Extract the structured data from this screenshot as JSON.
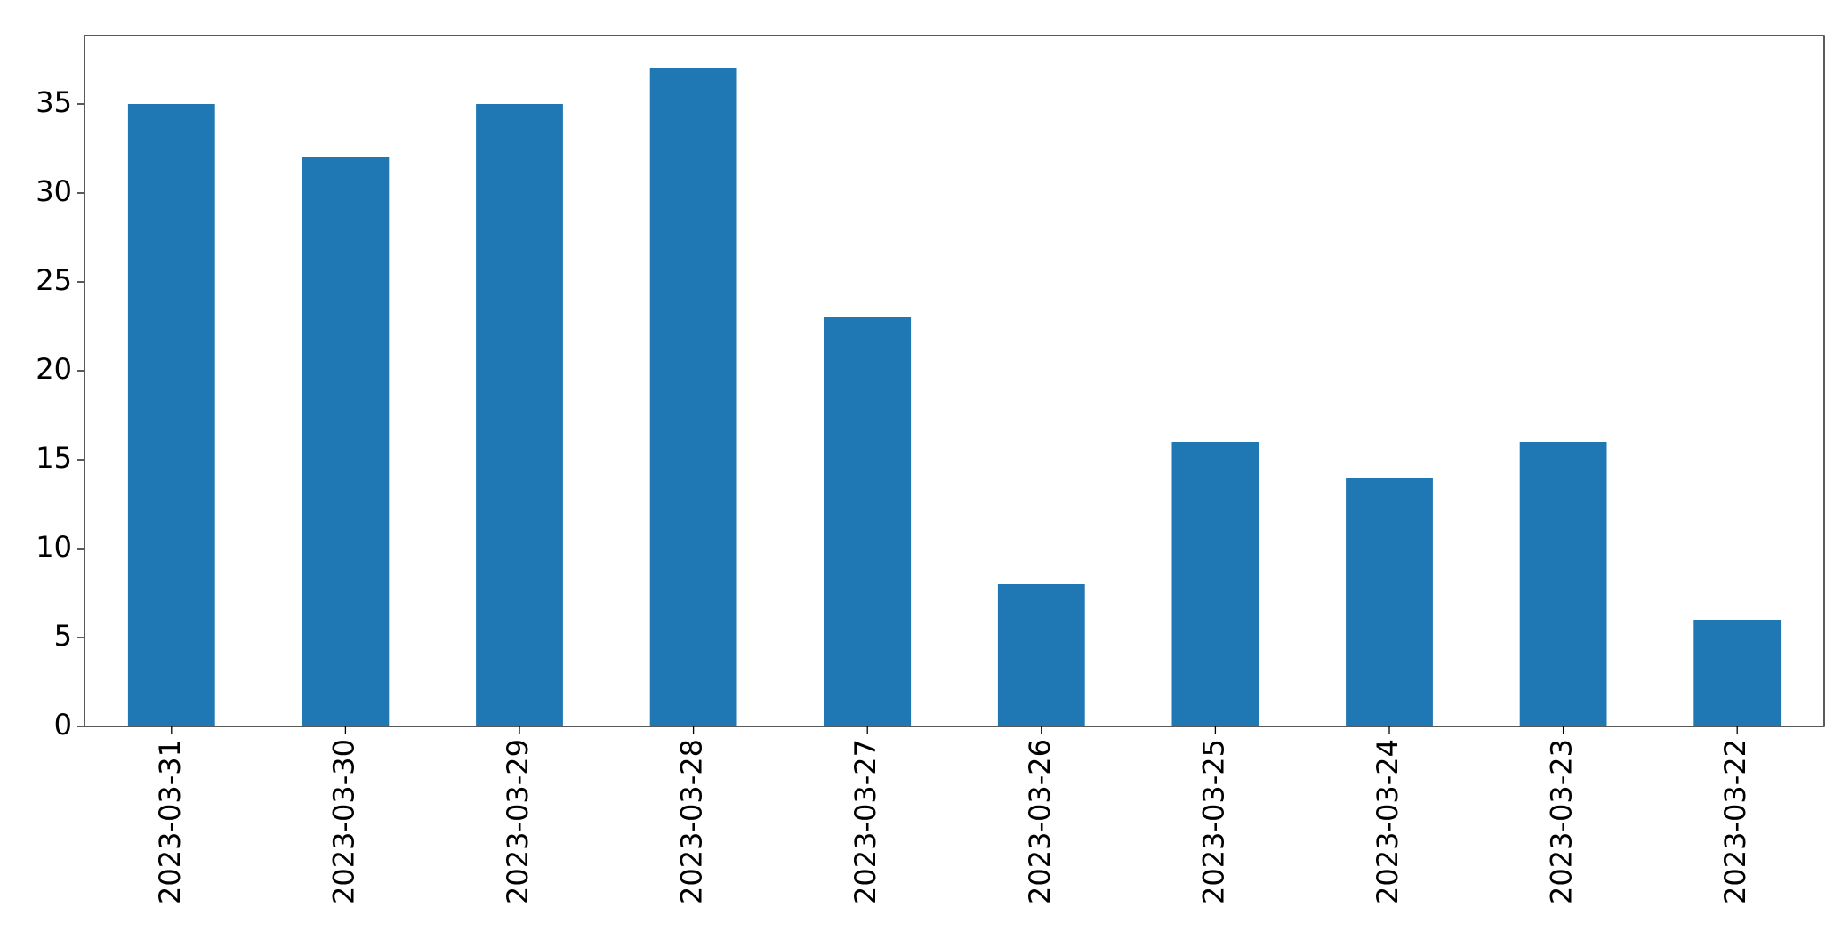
{
  "chart_data": {
    "type": "bar",
    "categories": [
      "2023-03-31",
      "2023-03-30",
      "2023-03-29",
      "2023-03-28",
      "2023-03-27",
      "2023-03-26",
      "2023-03-25",
      "2023-03-24",
      "2023-03-23",
      "2023-03-22"
    ],
    "values": [
      35,
      32,
      35,
      37,
      23,
      8,
      16,
      14,
      16,
      6
    ],
    "color": "#1f77b4",
    "ylim": [
      0,
      38.85
    ],
    "yticks": [
      0,
      5,
      10,
      15,
      20,
      25,
      30,
      35
    ],
    "grid": false
  }
}
